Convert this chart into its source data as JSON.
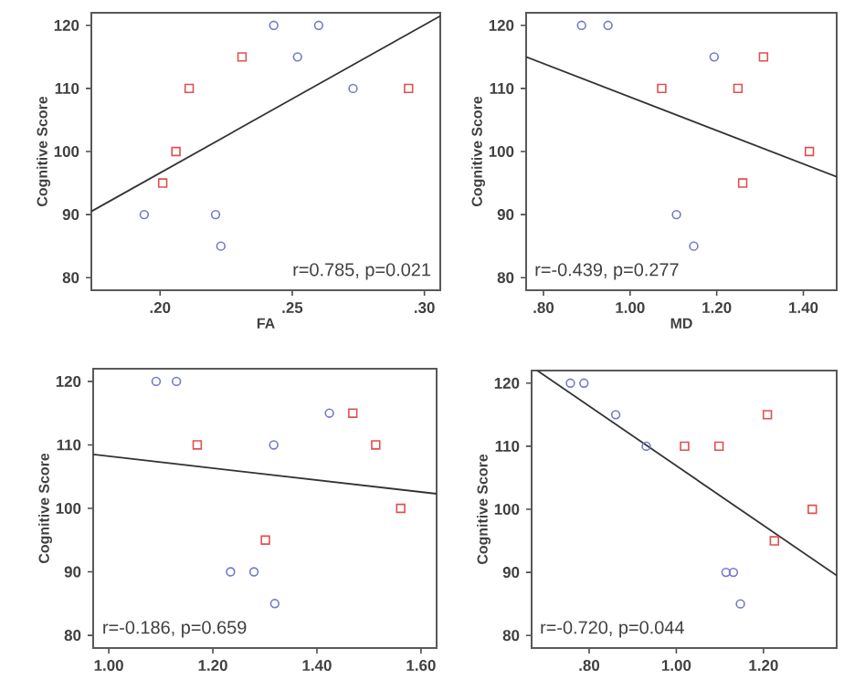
{
  "chart_data": [
    {
      "type": "scatter",
      "xlabel": "FA",
      "ylabel": "Cognitive Score",
      "xlim": [
        0.174,
        0.306
      ],
      "ylim": [
        78,
        122
      ],
      "xticks": [
        {
          "value": 0.2,
          "label": ".20"
        },
        {
          "value": 0.25,
          "label": ".25"
        },
        {
          "value": 0.3,
          "label": ".30"
        }
      ],
      "yticks": [
        80,
        90,
        100,
        110,
        120
      ],
      "annotations": [
        "r=0.785, p=0.021"
      ],
      "series": [
        {
          "color": "#7278cc",
          "marker": "circle",
          "x": [
            0.243,
            0.26,
            0.252,
            0.273,
            0.194,
            0.221,
            0.223
          ],
          "values": [
            120,
            120,
            115,
            110,
            90,
            90,
            85
          ]
        },
        {
          "color": "#e0504f",
          "marker": "square",
          "x": [
            0.231,
            0.211,
            0.206,
            0.201,
            0.294
          ],
          "values": [
            115,
            110,
            100,
            95,
            110
          ]
        },
        {
          "type": "line",
          "color": "#333333",
          "marker": "none",
          "x": [
            0.174,
            0.306
          ],
          "values": [
            90.5,
            121.5
          ]
        }
      ]
    },
    {
      "type": "scatter",
      "xlabel": "MD",
      "ylabel": "Cognitive Score",
      "xlim": [
        0.76,
        1.477
      ],
      "ylim": [
        78,
        122
      ],
      "xticks": [
        {
          "value": 0.8,
          "label": ".80"
        },
        {
          "value": 1.0,
          "label": "1.00"
        },
        {
          "value": 1.2,
          "label": "1.20"
        },
        {
          "value": 1.4,
          "label": "1.40"
        }
      ],
      "yticks": [
        80,
        90,
        100,
        110,
        120
      ],
      "annotations": [
        "r=-0.439, p=0.277"
      ],
      "series": [
        {
          "color": "#7278cc",
          "marker": "circle",
          "x": [
            0.888,
            0.949,
            1.194,
            1.107,
            1.147
          ],
          "values": [
            120,
            120,
            115,
            90,
            85
          ]
        },
        {
          "color": "#e0504f",
          "marker": "square",
          "x": [
            1.073,
            1.249,
            1.308,
            1.414,
            1.26
          ],
          "values": [
            110,
            110,
            115,
            100,
            95
          ]
        },
        {
          "type": "line",
          "color": "#333333",
          "marker": "none",
          "x": [
            0.76,
            1.477
          ],
          "values": [
            115,
            96
          ]
        }
      ]
    },
    {
      "type": "scatter",
      "ylabel": "Cognitive Score",
      "xlim": [
        0.97,
        1.63
      ],
      "ylim": [
        78,
        122
      ],
      "xticks": [
        {
          "value": 1.0,
          "label": "1.00"
        },
        {
          "value": 1.2,
          "label": "1.20"
        },
        {
          "value": 1.4,
          "label": "1.40"
        },
        {
          "value": 1.6,
          "label": "1.60"
        }
      ],
      "yticks": [
        80,
        90,
        100,
        110,
        120
      ],
      "annotations": [
        "r=-0.186, p=0.659"
      ],
      "series": [
        {
          "color": "#7278cc",
          "marker": "circle",
          "x": [
            1.091,
            1.13,
            1.424,
            1.317,
            1.234,
            1.279,
            1.319
          ],
          "values": [
            120,
            120,
            115,
            110,
            90,
            90,
            85
          ]
        },
        {
          "color": "#e0504f",
          "marker": "square",
          "x": [
            1.17,
            1.469,
            1.513,
            1.561,
            1.301
          ],
          "values": [
            110,
            115,
            110,
            100,
            95
          ]
        },
        {
          "type": "line",
          "color": "#333333",
          "marker": "none",
          "x": [
            0.97,
            1.63
          ],
          "values": [
            108.5,
            102.3
          ]
        }
      ]
    },
    {
      "type": "scatter",
      "ylabel": "Cognitive Score",
      "xlim": [
        0.668,
        1.368
      ],
      "ylim": [
        78,
        122
      ],
      "xticks": [
        {
          "value": 0.8,
          "label": ".80"
        },
        {
          "value": 1.0,
          "label": "1.00"
        },
        {
          "value": 1.2,
          "label": "1.20"
        }
      ],
      "yticks": [
        80,
        90,
        100,
        110,
        120
      ],
      "annotations": [
        "r=-0.720, p=0.044"
      ],
      "series": [
        {
          "color": "#7278cc",
          "marker": "circle",
          "x": [
            0.757,
            0.788,
            0.861,
            0.931,
            1.114,
            1.131,
            1.147
          ],
          "values": [
            120,
            120,
            115,
            110,
            90,
            90,
            85
          ]
        },
        {
          "color": "#e0504f",
          "marker": "square",
          "x": [
            1.019,
            1.098,
            1.209,
            1.312,
            1.225
          ],
          "values": [
            110,
            110,
            115,
            100,
            95
          ]
        },
        {
          "type": "line",
          "color": "#333333",
          "marker": "none",
          "x": [
            0.681,
            1.368
          ],
          "values": [
            122,
            89.5
          ]
        }
      ]
    }
  ]
}
